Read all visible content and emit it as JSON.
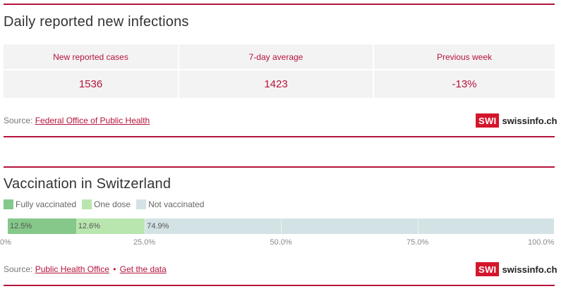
{
  "infections": {
    "title": "Daily reported new infections",
    "columns": [
      {
        "header": "New reported cases",
        "value": "1536"
      },
      {
        "header": "7-day average",
        "value": "1423"
      },
      {
        "header": "Previous week",
        "value": "-13%"
      }
    ],
    "source_label": "Source:",
    "source_link": "Federal Office of Public Health"
  },
  "vaccination": {
    "title": "Vaccination in Switzerland",
    "legend": [
      {
        "label": "Fully vaccinated",
        "color": "#85c88a"
      },
      {
        "label": "One dose",
        "color": "#b8e6ae"
      },
      {
        "label": "Not vaccinated",
        "color": "#d3e2e5"
      }
    ],
    "source_label": "Source:",
    "source_link": "Public Health Office",
    "separator": "•",
    "data_link": "Get the data"
  },
  "logo": {
    "badge": "SWI",
    "text": "swissinfo.ch",
    "color": "#d4162b"
  },
  "chart_data": {
    "type": "bar",
    "orientation": "horizontal-stacked",
    "series": [
      {
        "name": "Fully vaccinated",
        "value": 12.5,
        "label": "12.5%",
        "color": "#85c88a"
      },
      {
        "name": "One dose",
        "value": 12.6,
        "label": "12.6%",
        "color": "#b8e6ae"
      },
      {
        "name": "Not vaccinated",
        "value": 74.9,
        "label": "74.9%",
        "color": "#d3e2e5"
      }
    ],
    "xlim": [
      0,
      100
    ],
    "ticks": [
      0,
      25,
      50,
      75,
      100
    ],
    "tick_labels": [
      "0%",
      "25.0%",
      "50.0%",
      "75.0%",
      "100.0%"
    ],
    "grid": true,
    "legend_position": "top-left"
  }
}
